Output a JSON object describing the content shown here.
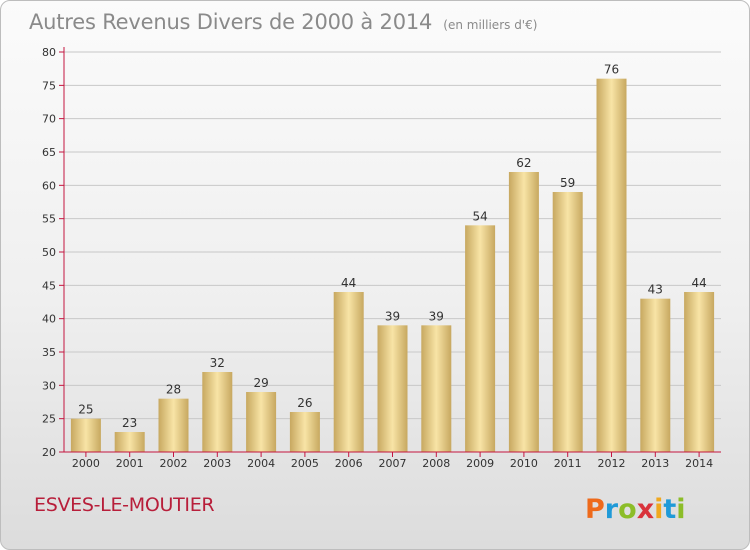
{
  "title": {
    "main": "Autres Revenus Divers de 2000 à 2014",
    "sub": "(en milliers d'€)"
  },
  "commune": "ESVES-LE-MOUTIER",
  "logo": {
    "text": "Proxiti",
    "colors": [
      "#ee6a1b",
      "#1f9ad8",
      "#8cbd28",
      "#d9333b",
      "#f0a81e",
      "#1f9ad8",
      "#8cbd28"
    ]
  },
  "colors": {
    "bar_light": "#f8e4a6",
    "bar_dark": "#c7a860",
    "axis": "#c4153f",
    "grid": "#c8c8c8",
    "commune": "#b81e3a"
  },
  "chart_data": {
    "type": "bar",
    "title": "Autres Revenus Divers de 2000 à 2014",
    "subtitle": "(en milliers d'€)",
    "categories": [
      "2000",
      "2001",
      "2002",
      "2003",
      "2004",
      "2005",
      "2006",
      "2007",
      "2008",
      "2009",
      "2010",
      "2011",
      "2012",
      "2013",
      "2014"
    ],
    "values": [
      25,
      23,
      28,
      32,
      29,
      26,
      44,
      39,
      39,
      54,
      62,
      59,
      76,
      43,
      44
    ],
    "ylim": [
      20,
      80
    ],
    "yticks": [
      "20",
      "25",
      "30",
      "35",
      "40",
      "45",
      "50",
      "55",
      "60",
      "65",
      "70",
      "75",
      "80"
    ],
    "xlabel": "",
    "ylabel": "",
    "grid": true,
    "legend": "none"
  }
}
